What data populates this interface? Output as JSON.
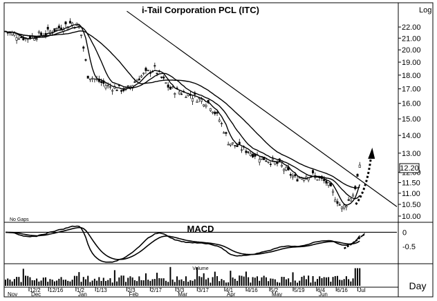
{
  "chart_data": {
    "type": "candlestick",
    "title": "i-Tail Corporation PCL (ITC)",
    "scale_label": "Log",
    "no_gaps_label": "No Gaps",
    "period_label": "Day",
    "price_axis": {
      "ticks": [
        10.0,
        10.5,
        11.0,
        11.5,
        12.0,
        13.0,
        14.0,
        15.0,
        16.0,
        17.0,
        18.0,
        19.0,
        20.0,
        21.0,
        22.0
      ],
      "tick_labels": [
        "10.00",
        "10.50",
        "11.00",
        "11.50",
        "12.00",
        "13.00",
        "14.00",
        "15.00",
        "16.00",
        "17.00",
        "18.00",
        "19.00",
        "20.00",
        "21.00",
        "22.00"
      ],
      "range": [
        9.8,
        24.2
      ],
      "scale": "log"
    },
    "last_price": 12.2,
    "last_price_label": "12.20",
    "date_ticks": [
      "12/2",
      "12/16",
      "1/2",
      "1/13",
      "2/3",
      "2/17",
      "3/3",
      "3/17",
      "4/1",
      "4/16",
      "5/2",
      "5/19",
      "6/4",
      "6/16",
      "Jul"
    ],
    "month_labels": [
      "Nov",
      "Dec",
      "Jan",
      "Feb",
      "Mar",
      "Apr",
      "May",
      "Jun"
    ],
    "trendlines": [
      {
        "from": [
          0.31,
          23.5
        ],
        "to": [
          1.0,
          10.4
        ]
      }
    ],
    "projection_arrows": [
      "price-up",
      "macd-up"
    ],
    "macd": {
      "title": "MACD",
      "tick_labels": [
        "0",
        "-0.5"
      ],
      "range": [
        -1.05,
        0.3
      ]
    },
    "volume": {
      "title": "Volume"
    }
  }
}
